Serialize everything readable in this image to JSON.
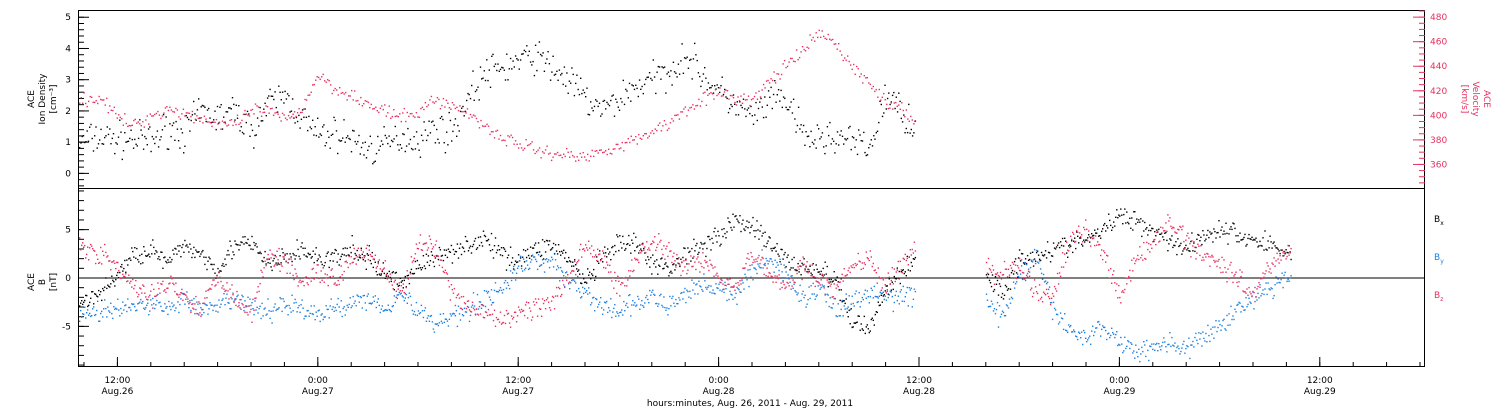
{
  "colors": {
    "black": "#000000",
    "pink": "#e8305f",
    "blue": "#1d7fe0",
    "axis": "#000000"
  },
  "xaxis": {
    "tick_labels": [
      {
        "time": "12:00",
        "date": "Aug.26"
      },
      {
        "time": "0:00",
        "date": "Aug.27"
      },
      {
        "time": "12:00",
        "date": "Aug.27"
      },
      {
        "time": "0:00",
        "date": "Aug.28"
      },
      {
        "time": "12:00",
        "date": "Aug.28"
      },
      {
        "time": "0:00",
        "date": "Aug.29"
      },
      {
        "time": "12:00",
        "date": "Aug.29"
      }
    ],
    "tick_hours": [
      12,
      24,
      36,
      48,
      60,
      72,
      84
    ],
    "title": "hours:minutes, Aug. 26, 2011 - Aug. 29, 2011",
    "range_hours": [
      9.7,
      90.3
    ]
  },
  "chart_data": [
    {
      "type": "scatter",
      "panel": "top",
      "ylabel_left": [
        "ACE",
        "Ion Density",
        "[cm⁻³]"
      ],
      "ylabel_right": [
        "ACE",
        "Velocity",
        "[km/s]"
      ],
      "ylim_left": [
        -0.5,
        5.2
      ],
      "ylim_right": [
        340,
        485
      ],
      "yticks_left": [
        0,
        1,
        2,
        3,
        4,
        5
      ],
      "yticks_right": [
        360,
        380,
        400,
        420,
        440,
        460,
        480
      ],
      "series": [
        {
          "axis": "left",
          "color": "#000000",
          "x": [
            9.7,
            11,
            12,
            13,
            14,
            15,
            16,
            17,
            18,
            19,
            20,
            21,
            22,
            23,
            24,
            25,
            26,
            27,
            28,
            29,
            30,
            31,
            32,
            33,
            34,
            35,
            36,
            37,
            38,
            39,
            40,
            41,
            42,
            43,
            44,
            45,
            46,
            47,
            48,
            49,
            50,
            51,
            52,
            53,
            54,
            55,
            56,
            57,
            58,
            59.8
          ],
          "y": [
            1.0,
            1.2,
            1.1,
            1.1,
            1.0,
            1.5,
            1.3,
            2.0,
            1.8,
            2.0,
            1.4,
            2.2,
            2.5,
            1.8,
            1.2,
            1.3,
            1.1,
            0.8,
            0.9,
            1.2,
            1.1,
            1.5,
            1.3,
            2.5,
            3.2,
            3.4,
            3.6,
            3.8,
            3.4,
            3.0,
            2.4,
            2.0,
            2.4,
            2.8,
            3.0,
            3.3,
            3.8,
            3.2,
            2.6,
            2.2,
            1.8,
            2.3,
            2.4,
            1.2,
            1.1,
            1.2,
            1.0,
            0.8,
            2.5,
            1.5
          ]
        },
        {
          "axis": "right",
          "color": "#e8305f",
          "x": [
            9.7,
            11,
            12,
            13,
            14,
            15,
            16,
            17,
            18,
            19,
            20,
            21,
            22,
            23,
            24,
            25,
            26,
            27,
            28,
            29,
            30,
            31,
            32,
            33,
            34,
            35,
            36,
            37,
            38,
            39,
            40,
            41,
            42,
            43,
            44,
            45,
            46,
            47,
            48,
            49,
            50,
            51,
            52,
            53,
            54,
            55,
            56,
            57,
            58,
            59.8
          ],
          "y": [
            412,
            415,
            398,
            392,
            400,
            406,
            402,
            398,
            394,
            392,
            404,
            404,
            396,
            406,
            434,
            422,
            418,
            408,
            404,
            398,
            403,
            414,
            408,
            402,
            392,
            382,
            378,
            372,
            370,
            368,
            366,
            372,
            376,
            380,
            388,
            394,
            406,
            414,
            418,
            415,
            412,
            428,
            440,
            452,
            468,
            458,
            440,
            426,
            412,
            396
          ]
        }
      ]
    },
    {
      "type": "scatter",
      "panel": "bottom",
      "ylabel_left": [
        "ACE",
        "B",
        "[nT]"
      ],
      "ylim": [
        -9.2,
        9.2
      ],
      "yticks": [
        -5,
        0,
        5
      ],
      "zero_line": true,
      "legend": [
        "B",
        "B",
        "B"
      ],
      "legend_subscripts": [
        "x",
        "y",
        "z"
      ],
      "legend_colors": [
        "#000000",
        "#1d7fe0",
        "#e8305f"
      ],
      "series": [
        {
          "name": "Bx",
          "color": "#000000",
          "x": [
            9.7,
            11,
            12,
            13,
            14,
            15,
            16,
            17,
            18,
            19,
            20,
            21,
            22,
            23,
            24,
            25,
            26,
            27,
            28,
            29,
            30,
            31,
            32,
            33,
            34,
            35,
            36,
            37,
            38,
            39,
            40,
            41,
            42,
            43,
            44,
            45,
            46,
            47,
            48,
            49,
            50,
            51,
            52,
            53,
            54,
            55,
            56,
            57,
            58,
            59.8,
            64,
            65,
            66,
            67,
            68,
            69,
            70,
            71,
            72,
            73,
            74,
            75,
            76,
            77,
            78,
            79,
            80,
            81,
            82.3
          ],
          "y": [
            -2.5,
            -1.5,
            0.5,
            2.5,
            3.0,
            1.5,
            3.5,
            2.5,
            1.0,
            3.5,
            3.5,
            1.5,
            2.0,
            3.0,
            2.0,
            2.0,
            3.0,
            2.0,
            0.5,
            -0.5,
            1.5,
            2.0,
            3.0,
            3.5,
            4.0,
            2.5,
            2.0,
            3.0,
            3.5,
            2.0,
            -0.5,
            2.0,
            3.5,
            3.5,
            1.5,
            1.0,
            2.5,
            3.5,
            4.5,
            6.0,
            5.5,
            3.5,
            2.0,
            1.0,
            1.0,
            -0.5,
            -4.5,
            -5.0,
            -1.0,
            2.0,
            0.5,
            -1.5,
            2.0,
            2.5,
            3.0,
            3.5,
            4.0,
            5.0,
            6.5,
            6.0,
            5.0,
            4.0,
            3.0,
            4.5,
            5.0,
            4.5,
            4.0,
            3.5,
            2.5
          ]
        },
        {
          "name": "By",
          "color": "#1d7fe0",
          "x": [
            9.7,
            11,
            12,
            13,
            14,
            15,
            16,
            17,
            18,
            19,
            20,
            21,
            22,
            23,
            24,
            25,
            26,
            27,
            28,
            29,
            30,
            31,
            32,
            33,
            34,
            35,
            36,
            37,
            38,
            39,
            40,
            41,
            42,
            43,
            44,
            45,
            46,
            47,
            48,
            49,
            50,
            51,
            52,
            53,
            54,
            55,
            56,
            57,
            58,
            59.8,
            64,
            65,
            66,
            67,
            68,
            69,
            70,
            71,
            72,
            73,
            74,
            75,
            76,
            77,
            78,
            79,
            80,
            81,
            82.3
          ],
          "y": [
            -3.5,
            -3.5,
            -3.0,
            -3.0,
            -2.5,
            -3.0,
            -2.0,
            -3.5,
            -3.0,
            -2.0,
            -3.0,
            -3.5,
            -2.5,
            -3.0,
            -4.0,
            -3.0,
            -2.5,
            -2.0,
            -3.0,
            -1.5,
            -3.5,
            -4.5,
            -4.0,
            -3.0,
            -2.0,
            -1.0,
            1.0,
            2.0,
            1.5,
            0.0,
            -1.5,
            -3.0,
            -3.5,
            -2.5,
            -2.0,
            -3.0,
            -1.5,
            -0.5,
            -1.0,
            -2.0,
            1.0,
            2.0,
            0.5,
            -2.0,
            -1.0,
            -3.0,
            -2.5,
            -1.5,
            -2.0,
            -1.5,
            -2.5,
            -4.0,
            0.5,
            2.0,
            -3.0,
            -5.5,
            -6.0,
            -5.0,
            -6.5,
            -7.5,
            -7.0,
            -6.5,
            -7.5,
            -6.0,
            -5.0,
            -3.0,
            -2.0,
            -1.0,
            0.5
          ]
        },
        {
          "name": "Bz",
          "color": "#e8305f",
          "x": [
            9.7,
            11,
            12,
            13,
            14,
            15,
            16,
            17,
            18,
            19,
            20,
            21,
            22,
            23,
            24,
            25,
            26,
            27,
            28,
            29,
            30,
            31,
            32,
            33,
            34,
            35,
            36,
            37,
            38,
            39,
            40,
            41,
            42,
            43,
            44,
            45,
            46,
            47,
            48,
            49,
            50,
            51,
            52,
            53,
            54,
            55,
            56,
            57,
            58,
            59.8,
            64,
            65,
            66,
            67,
            68,
            69,
            70,
            71,
            72,
            73,
            74,
            75,
            76,
            77,
            78,
            79,
            80,
            81,
            82.3
          ],
          "y": [
            3.5,
            2.5,
            1.0,
            -1.0,
            -2.0,
            0.0,
            -2.0,
            -3.0,
            0.5,
            -2.0,
            -3.5,
            2.5,
            2.0,
            -0.5,
            1.0,
            -0.5,
            2.5,
            3.0,
            0.5,
            -1.5,
            3.5,
            3.0,
            -1.5,
            -3.0,
            -3.5,
            -4.5,
            -3.5,
            -3.0,
            -2.5,
            0.0,
            3.5,
            2.0,
            -1.0,
            2.0,
            4.0,
            3.0,
            1.0,
            2.0,
            0.0,
            -0.5,
            2.5,
            0.5,
            -1.0,
            1.5,
            -0.5,
            -1.0,
            1.5,
            2.0,
            -1.0,
            3.5,
            1.0,
            0.5,
            1.5,
            -1.5,
            -2.0,
            4.0,
            5.0,
            3.0,
            -2.0,
            2.0,
            3.5,
            6.0,
            4.0,
            2.5,
            1.5,
            0.5,
            -2.0,
            1.5,
            3.0
          ]
        }
      ]
    }
  ]
}
